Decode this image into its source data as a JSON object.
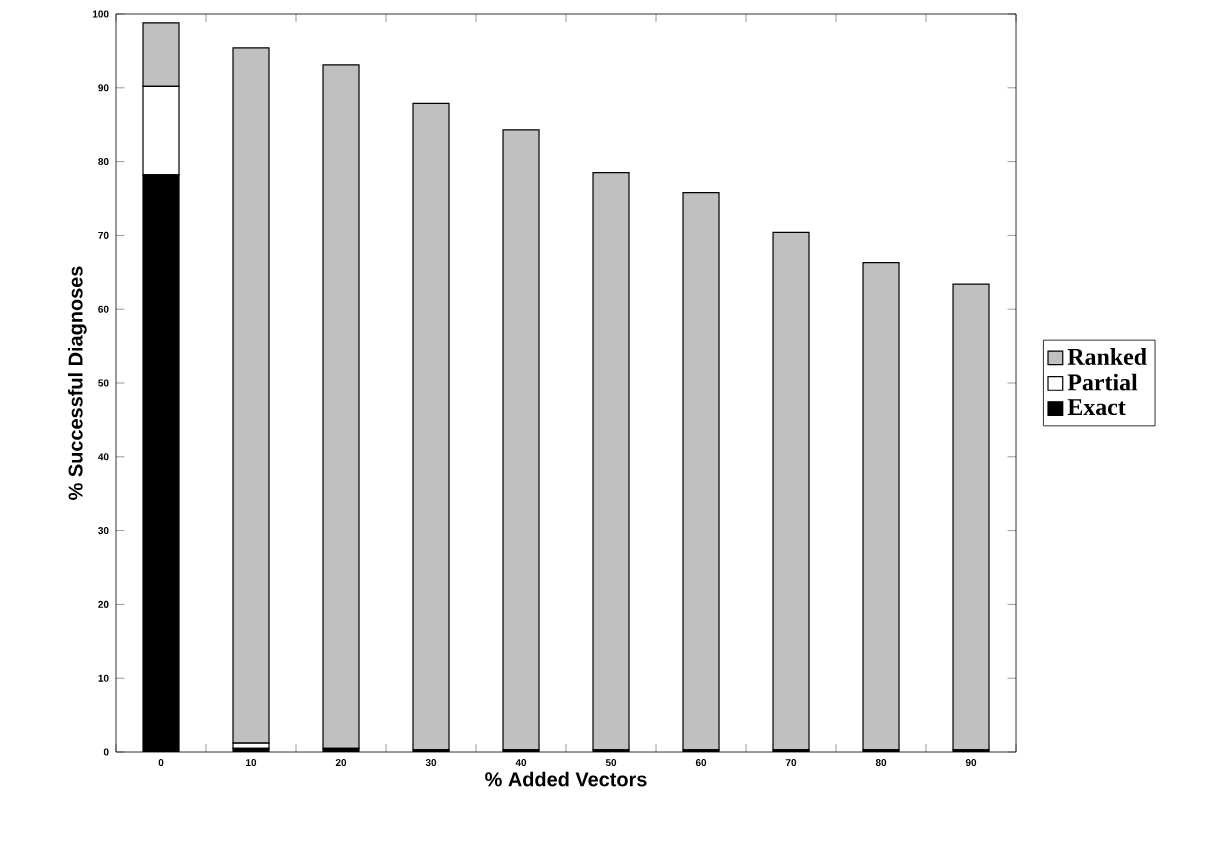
{
  "chart_data": {
    "type": "bar",
    "stacked": true,
    "xlabel": "% Added Vectors",
    "ylabel": "% Successful Diagnoses",
    "categories": [
      "0",
      "10",
      "20",
      "30",
      "40",
      "50",
      "60",
      "70",
      "80",
      "90"
    ],
    "series": [
      {
        "name": "Exact",
        "color": "#000000",
        "values": [
          78.2,
          0.5,
          0.5,
          0.3,
          0.3,
          0.3,
          0.3,
          0.3,
          0.3,
          0.3
        ]
      },
      {
        "name": "Partial",
        "color": "#ffffff",
        "values": [
          12.0,
          0.7,
          0,
          0,
          0,
          0,
          0,
          0,
          0,
          0
        ]
      },
      {
        "name": "Ranked",
        "color": "#c0c0c0",
        "values": [
          8.6,
          94.2,
          92.6,
          87.6,
          84.0,
          78.2,
          75.5,
          70.1,
          66.0,
          63.1
        ]
      }
    ],
    "ylim": [
      0,
      100
    ],
    "yticks": [
      0,
      10,
      20,
      30,
      40,
      50,
      60,
      70,
      80,
      90,
      100
    ],
    "grid": false,
    "legend": "right"
  }
}
